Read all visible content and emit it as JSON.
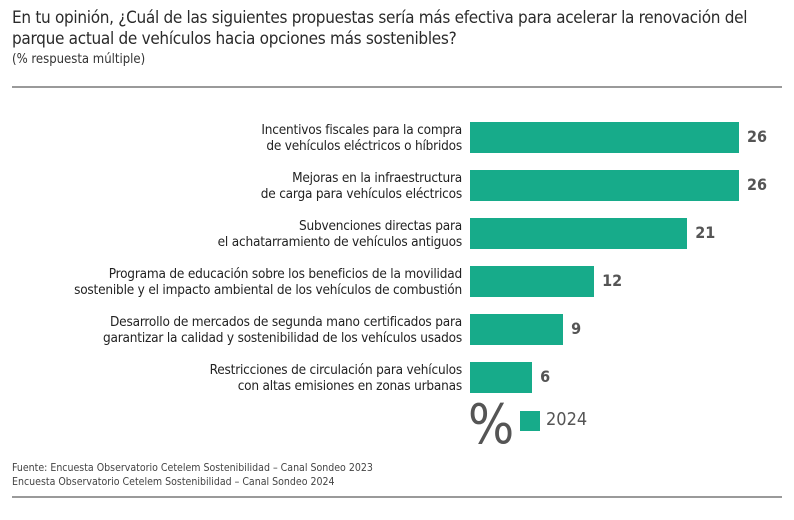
{
  "chart_data": {
    "type": "bar",
    "orientation": "horizontal",
    "title": "En tu opinión, ¿Cuál de las siguientes propuestas sería más efectiva para acelerar la renovación del parque actual de vehículos hacia opciones más sostenibles?",
    "subtitle": "(% respuesta múltiple)",
    "categories": [
      [
        "Incentivos fiscales para la compra",
        "de vehículos eléctricos o híbridos"
      ],
      [
        "Mejoras en la infraestructura",
        "de carga para vehículos eléctricos"
      ],
      [
        "Subvenciones directas para",
        "el achatarramiento de vehículos antiguos"
      ],
      [
        "Programa de educación sobre los beneficios de la movilidad",
        "sostenible y el impacto ambiental de los vehículos de combustión"
      ],
      [
        "Desarrollo de mercados de segunda mano certificados para",
        "garantizar la calidad y sostenibilidad de los vehículos usados"
      ],
      [
        "Restricciones de circulación para vehículos",
        "con altas emisiones en zonas urbanas"
      ]
    ],
    "series": [
      {
        "name": "2024",
        "values": [
          26,
          26,
          21,
          12,
          9,
          6
        ],
        "color": "#17ab8a"
      }
    ],
    "unit_symbol": "%",
    "xlim": [
      0,
      26
    ],
    "grid": false,
    "legend": "bottom"
  },
  "source": [
    "Fuente: Encuesta Observatorio Cetelem Sostenibilidad – Canal Sondeo 2023",
    "Encuesta Observatorio Cetelem Sostenibilidad – Canal Sondeo 2024"
  ]
}
